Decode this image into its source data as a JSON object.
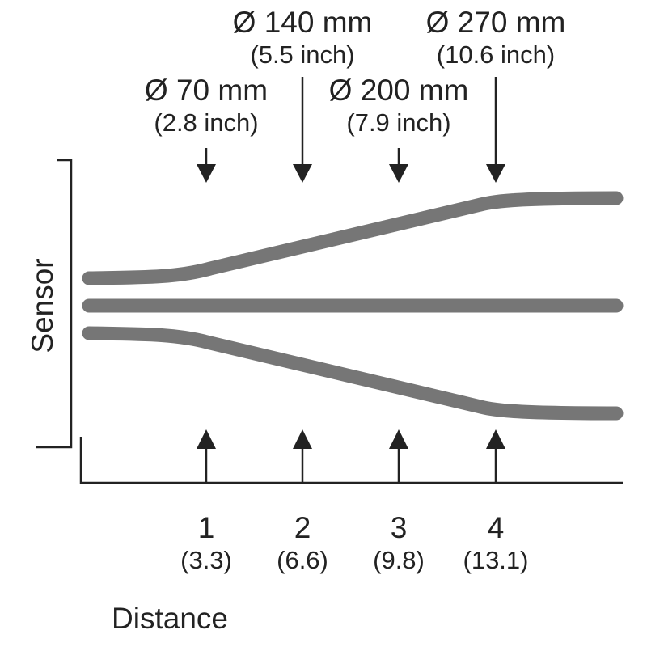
{
  "sensor_label": "Sensor",
  "distance_label": "Distance",
  "markers": [
    {
      "diameter": "Ø 70 mm",
      "diameter_inch": "(2.8 inch)",
      "distance": "1",
      "distance_alt": "(3.3)"
    },
    {
      "diameter": "Ø 140 mm",
      "diameter_inch": "(5.5 inch)",
      "distance": "2",
      "distance_alt": "(6.6)"
    },
    {
      "diameter": "Ø 200 mm",
      "diameter_inch": "(7.9 inch)",
      "distance": "3",
      "distance_alt": "(9.8)"
    },
    {
      "diameter": "Ø 270 mm",
      "diameter_inch": "(10.6 inch)",
      "distance": "4",
      "distance_alt": "(13.1)"
    }
  ]
}
